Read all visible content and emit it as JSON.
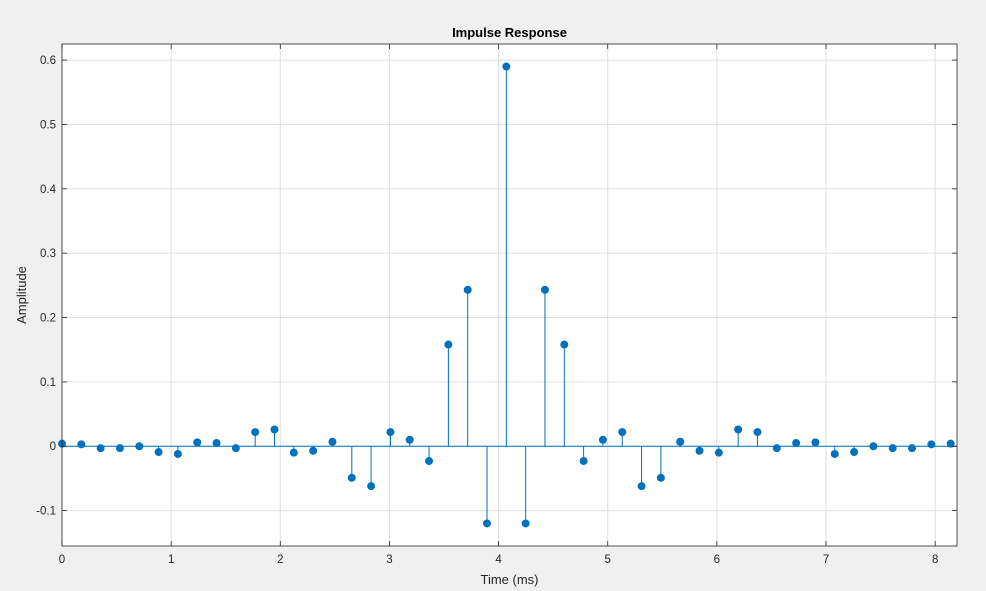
{
  "chart_data": {
    "type": "stem",
    "title": "Impulse Response",
    "xlabel": "Time (ms)",
    "ylabel": "Amplitude",
    "xlim": [
      0,
      8.2
    ],
    "ylim": [
      -0.155,
      0.625
    ],
    "xticks": [
      0,
      1,
      2,
      3,
      4,
      5,
      6,
      7,
      8
    ],
    "yticks": [
      -0.1,
      0,
      0.1,
      0.2,
      0.3,
      0.4,
      0.5,
      0.6
    ],
    "ytick_labels": [
      "-0.1",
      "0",
      "0.1",
      "0.2",
      "0.3",
      "0.4",
      "0.5",
      "0.6"
    ],
    "grid": true,
    "marker_color": "#0072BD",
    "x": [
      0.0,
      0.177,
      0.354,
      0.531,
      0.708,
      0.885,
      1.062,
      1.239,
      1.416,
      1.593,
      1.77,
      1.947,
      2.124,
      2.301,
      2.478,
      2.655,
      2.832,
      3.009,
      3.186,
      3.363,
      3.54,
      3.717,
      3.894,
      4.071,
      4.248,
      4.425,
      4.602,
      4.779,
      4.956,
      5.133,
      5.31,
      5.487,
      5.664,
      5.841,
      6.018,
      6.195,
      6.372,
      6.549,
      6.726,
      6.903,
      7.08,
      7.257,
      7.434,
      7.611,
      7.788,
      7.965,
      8.142
    ],
    "y": [
      0.004,
      0.003,
      -0.003,
      -0.003,
      0.0,
      -0.009,
      -0.012,
      0.006,
      0.005,
      -0.003,
      0.022,
      0.026,
      -0.01,
      -0.007,
      0.007,
      -0.049,
      -0.062,
      0.022,
      0.01,
      -0.023,
      0.158,
      0.243,
      -0.12,
      0.59,
      -0.12,
      0.243,
      0.158,
      -0.023,
      0.01,
      0.022,
      -0.062,
      -0.049,
      0.007,
      -0.007,
      -0.01,
      0.026,
      0.022,
      -0.003,
      0.005,
      0.006,
      -0.012,
      -0.009,
      0.0,
      -0.003,
      -0.003,
      0.003,
      0.004
    ]
  }
}
